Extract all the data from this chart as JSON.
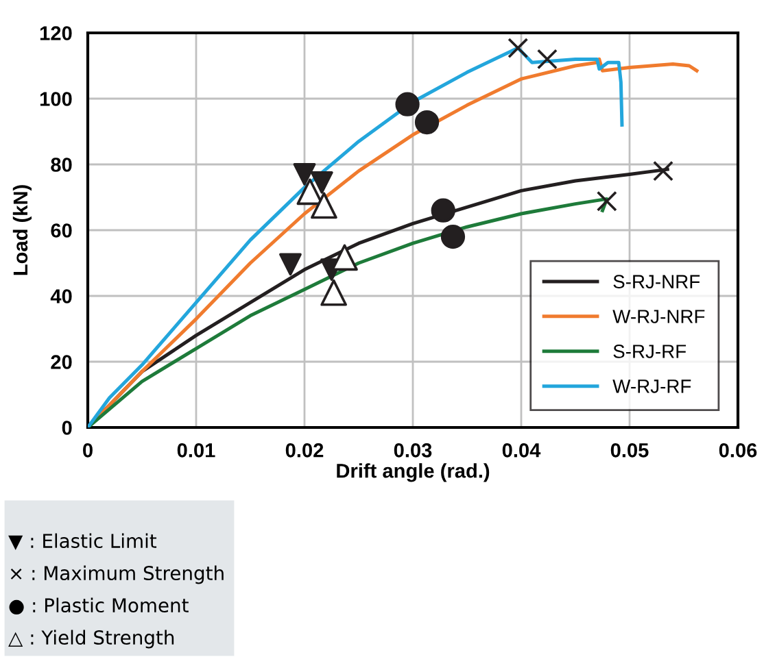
{
  "chart_data": {
    "type": "line",
    "xlabel": "Drift angle (rad.)",
    "ylabel": "Load (kN)",
    "xlim": [
      0,
      0.06
    ],
    "xticks": [
      0,
      0.01,
      0.02,
      0.03,
      0.04,
      0.05,
      0.06
    ],
    "ylim": [
      0,
      120
    ],
    "yticks": [
      0,
      20,
      40,
      60,
      80,
      100,
      120
    ],
    "grid": true,
    "legend": "bottom right",
    "marker": "none",
    "line_style": "solid",
    "series": [
      {
        "name": "S-RJ-NRF",
        "color": "#231f20",
        "x": [
          0,
          0.005,
          0.01,
          0.015,
          0.02,
          0.025,
          0.03,
          0.035,
          0.04,
          0.045,
          0.05,
          0.0535
        ],
        "values": [
          0,
          17,
          28,
          38,
          48,
          56,
          62,
          67,
          72,
          75,
          77,
          78.5
        ]
      },
      {
        "name": "W-RJ-NRF",
        "color": "#f07b2e",
        "x": [
          0,
          0.005,
          0.01,
          0.015,
          0.02,
          0.025,
          0.03,
          0.035,
          0.04,
          0.045,
          0.047,
          0.0472,
          0.0475,
          0.05,
          0.054,
          0.0555,
          0.0562
        ],
        "values": [
          0,
          17,
          33,
          50,
          65,
          78,
          89,
          98,
          106,
          110,
          111,
          112,
          108.5,
          109.5,
          110.5,
          110,
          108.5
        ]
      },
      {
        "name": "S-RJ-RF",
        "color": "#1e7b3a",
        "x": [
          0,
          0.005,
          0.01,
          0.015,
          0.02,
          0.025,
          0.03,
          0.035,
          0.04,
          0.045,
          0.0479,
          0.0475
        ],
        "values": [
          0,
          14,
          24,
          34,
          42,
          50,
          56,
          61,
          65,
          68,
          69.5,
          66
        ]
      },
      {
        "name": "W-RJ-RF",
        "color": "#23a6dc",
        "x": [
          0,
          0.002,
          0.005,
          0.01,
          0.015,
          0.02,
          0.025,
          0.03,
          0.035,
          0.0397,
          0.041,
          0.045,
          0.047,
          0.0472,
          0.048,
          0.049,
          0.0492,
          0.0493
        ],
        "values": [
          0,
          9,
          19,
          38,
          57,
          73,
          87,
          99,
          108,
          115.4,
          111,
          112,
          112,
          109,
          111,
          111,
          105,
          92
        ]
      },
      {
        "type": "scatter",
        "marker": "triangle_down",
        "color": "#231f20",
        "x": [
          0.02,
          0.0216,
          0.0187,
          0.0225
        ],
        "values": [
          77,
          74.5,
          49.6,
          48
        ]
      },
      {
        "type": "scatter",
        "marker": "cross",
        "color": "#231f20",
        "x": [
          0.0397,
          0.0424,
          0.0531,
          0.0479
        ],
        "values": [
          115.4,
          112,
          78,
          68.8
        ]
      },
      {
        "type": "scatter",
        "marker": "circle",
        "color": "#231f20",
        "x": [
          0.0295,
          0.0313,
          0.0328,
          0.0337
        ],
        "values": [
          98.3,
          92.8,
          66,
          58
        ]
      },
      {
        "type": "scatter",
        "marker": "triangle",
        "color": "#231f20",
        "x": [
          0.0205,
          0.0218,
          0.0237,
          0.0227
        ],
        "values": [
          71.7,
          67.5,
          51.7,
          41
        ]
      }
    ],
    "annotations": [
      "▼ : Elastic Limit",
      "× : Maximum Strength",
      "● : Plastic Moment",
      "△ : Yield Strength"
    ]
  }
}
